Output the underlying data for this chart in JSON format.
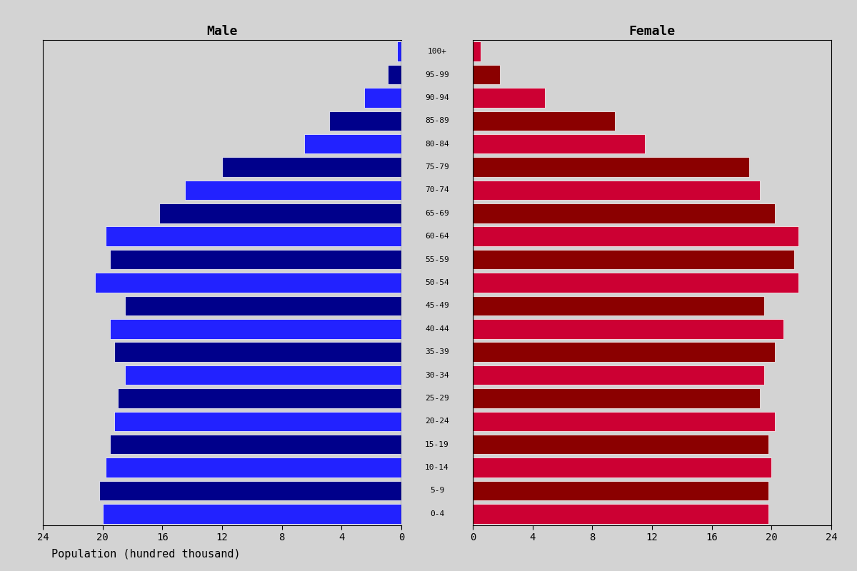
{
  "age_groups": [
    "0-4",
    "5-9",
    "10-14",
    "15-19",
    "20-24",
    "25-29",
    "30-34",
    "35-39",
    "40-44",
    "45-49",
    "50-54",
    "55-59",
    "60-64",
    "65-69",
    "70-74",
    "75-79",
    "80-84",
    "85-89",
    "90-94",
    "95-99",
    "100+"
  ],
  "male_values": [
    20.0,
    20.2,
    19.8,
    19.5,
    19.2,
    19.0,
    18.5,
    19.2,
    19.5,
    18.5,
    20.5,
    19.5,
    19.8,
    16.2,
    14.5,
    12.0,
    6.5,
    4.8,
    2.5,
    0.9,
    0.3
  ],
  "female_values": [
    19.8,
    19.8,
    20.0,
    19.8,
    20.2,
    19.2,
    19.5,
    20.2,
    20.8,
    19.5,
    21.8,
    21.5,
    21.8,
    20.2,
    19.2,
    18.5,
    11.5,
    9.5,
    4.8,
    1.8,
    0.5
  ],
  "male_colors": [
    "#2222FF",
    "#00008B",
    "#2222FF",
    "#00008B",
    "#2222FF",
    "#00008B",
    "#2222FF",
    "#00008B",
    "#2222FF",
    "#00008B",
    "#2222FF",
    "#00008B",
    "#2222FF",
    "#00008B",
    "#2222FF",
    "#00008B",
    "#2222FF",
    "#00008B",
    "#2222FF",
    "#00008B",
    "#2222FF"
  ],
  "female_colors": [
    "#CC0033",
    "#8B0000",
    "#CC0033",
    "#8B0000",
    "#CC0033",
    "#8B0000",
    "#CC0033",
    "#8B0000",
    "#CC0033",
    "#8B0000",
    "#CC0033",
    "#8B0000",
    "#CC0033",
    "#8B0000",
    "#CC0033",
    "#8B0000",
    "#CC0033",
    "#8B0000",
    "#CC0033",
    "#8B0000",
    "#CC0033"
  ],
  "title_male": "Male",
  "title_female": "Female",
  "xlabel": "Population (hundred thousand)",
  "xlim": 24,
  "background_color": "#D3D3D3",
  "plot_background": "#D3D3D3"
}
